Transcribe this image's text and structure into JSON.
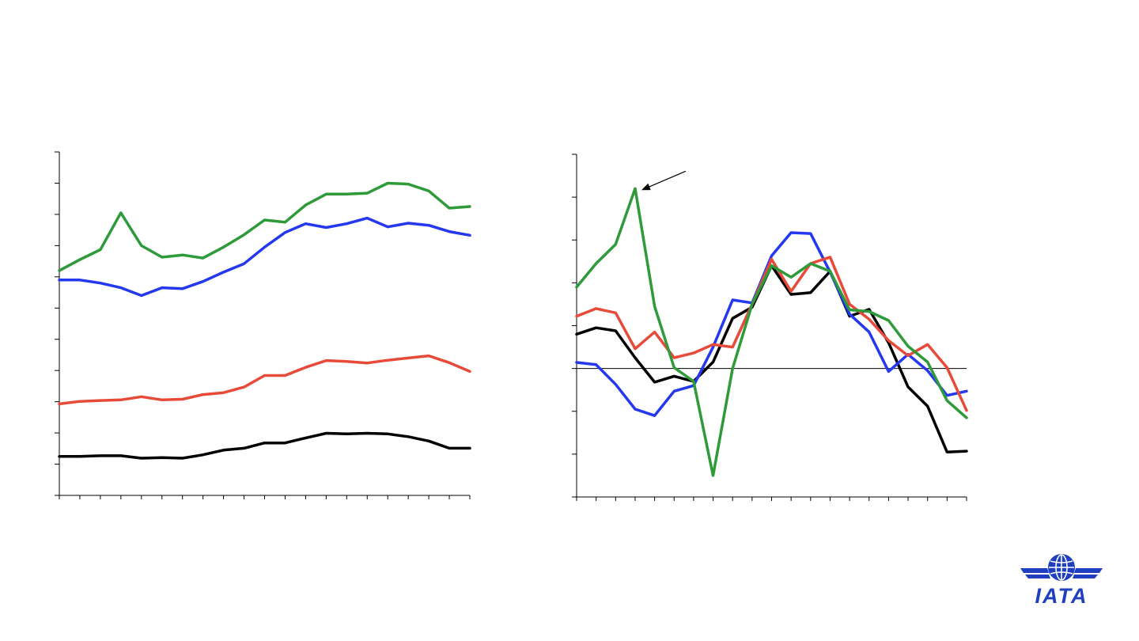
{
  "colors": {
    "green": "#2e9a3a",
    "blue": "#2438f0",
    "red": "#e84a3a",
    "black": "#000000",
    "logo": "#1f3fbf"
  },
  "logo": {
    "text": "IATA",
    "icon": "globe-wings-icon"
  },
  "chart_data": [
    {
      "type": "line",
      "title": "",
      "xlabel": "",
      "ylabel": "",
      "grid": false,
      "x": [
        0,
        1,
        2,
        3,
        4,
        5,
        6,
        7,
        8,
        9,
        10,
        11,
        12,
        13,
        14,
        15,
        16,
        17,
        18,
        19,
        20
      ],
      "ylim": [
        0,
        11
      ],
      "yticks": [
        0,
        1,
        2,
        3,
        4,
        5,
        6,
        7,
        8,
        9,
        10,
        11
      ],
      "series": [
        {
          "color": "#2e9a3a",
          "values": [
            7.2,
            7.55,
            7.87,
            9.05,
            8.0,
            7.63,
            7.7,
            7.6,
            7.95,
            8.35,
            8.82,
            8.75,
            9.3,
            9.65,
            9.65,
            9.68,
            10.0,
            9.97,
            9.75,
            9.2,
            9.25
          ]
        },
        {
          "color": "#2438f0",
          "values": [
            6.9,
            6.9,
            6.8,
            6.65,
            6.4,
            6.65,
            6.62,
            6.85,
            7.15,
            7.42,
            7.95,
            8.42,
            8.7,
            8.58,
            8.7,
            8.88,
            8.6,
            8.72,
            8.65,
            8.45,
            8.33
          ]
        },
        {
          "color": "#e84a3a",
          "values": [
            2.93,
            3.01,
            3.04,
            3.06,
            3.16,
            3.06,
            3.08,
            3.23,
            3.29,
            3.47,
            3.84,
            3.84,
            4.1,
            4.32,
            4.29,
            4.24,
            4.33,
            4.4,
            4.47,
            4.25,
            3.97
          ]
        },
        {
          "color": "#000000",
          "values": [
            1.25,
            1.25,
            1.27,
            1.27,
            1.19,
            1.21,
            1.19,
            1.3,
            1.45,
            1.51,
            1.68,
            1.68,
            1.84,
            1.99,
            1.97,
            1.99,
            1.97,
            1.88,
            1.74,
            1.51,
            1.51
          ]
        }
      ]
    },
    {
      "type": "line",
      "title": "",
      "xlabel": "",
      "ylabel": "",
      "grid": false,
      "x": [
        0,
        1,
        2,
        3,
        4,
        5,
        6,
        7,
        8,
        9,
        10,
        11,
        12,
        13,
        14,
        15,
        16,
        17,
        18,
        19,
        20
      ],
      "ylim": [
        -3,
        5
      ],
      "yticks": [
        -3,
        -2,
        -1,
        0,
        1,
        2,
        3,
        4,
        5
      ],
      "zero_line": true,
      "annotation": {
        "type": "arrow",
        "points_to": [
          3,
          4.2
        ]
      },
      "series": [
        {
          "color": "#000000",
          "values": [
            0.8,
            0.95,
            0.88,
            0.25,
            -0.32,
            -0.18,
            -0.3,
            0.15,
            1.17,
            1.43,
            2.4,
            1.73,
            1.77,
            2.27,
            1.22,
            1.38,
            0.6,
            -0.43,
            -0.88,
            -1.95,
            -1.93
          ]
        },
        {
          "color": "#2438f0",
          "values": [
            0.14,
            0.09,
            -0.37,
            -0.95,
            -1.1,
            -0.53,
            -0.4,
            0.5,
            1.6,
            1.53,
            2.63,
            3.17,
            3.15,
            2.25,
            1.27,
            0.85,
            -0.07,
            0.33,
            -0.05,
            -0.63,
            -0.53
          ]
        },
        {
          "color": "#e84a3a",
          "values": [
            1.22,
            1.4,
            1.3,
            0.46,
            0.85,
            0.25,
            0.36,
            0.56,
            0.5,
            1.5,
            2.55,
            1.8,
            2.45,
            2.6,
            1.5,
            1.15,
            0.65,
            0.3,
            0.56,
            0.02,
            -0.98
          ]
        },
        {
          "color": "#2e9a3a",
          "values": [
            1.9,
            2.45,
            2.9,
            4.2,
            1.45,
            0.02,
            -0.3,
            -2.5,
            0.0,
            1.5,
            2.4,
            2.13,
            2.45,
            2.27,
            1.37,
            1.33,
            1.12,
            0.52,
            0.15,
            -0.75,
            -1.15
          ]
        }
      ]
    }
  ]
}
